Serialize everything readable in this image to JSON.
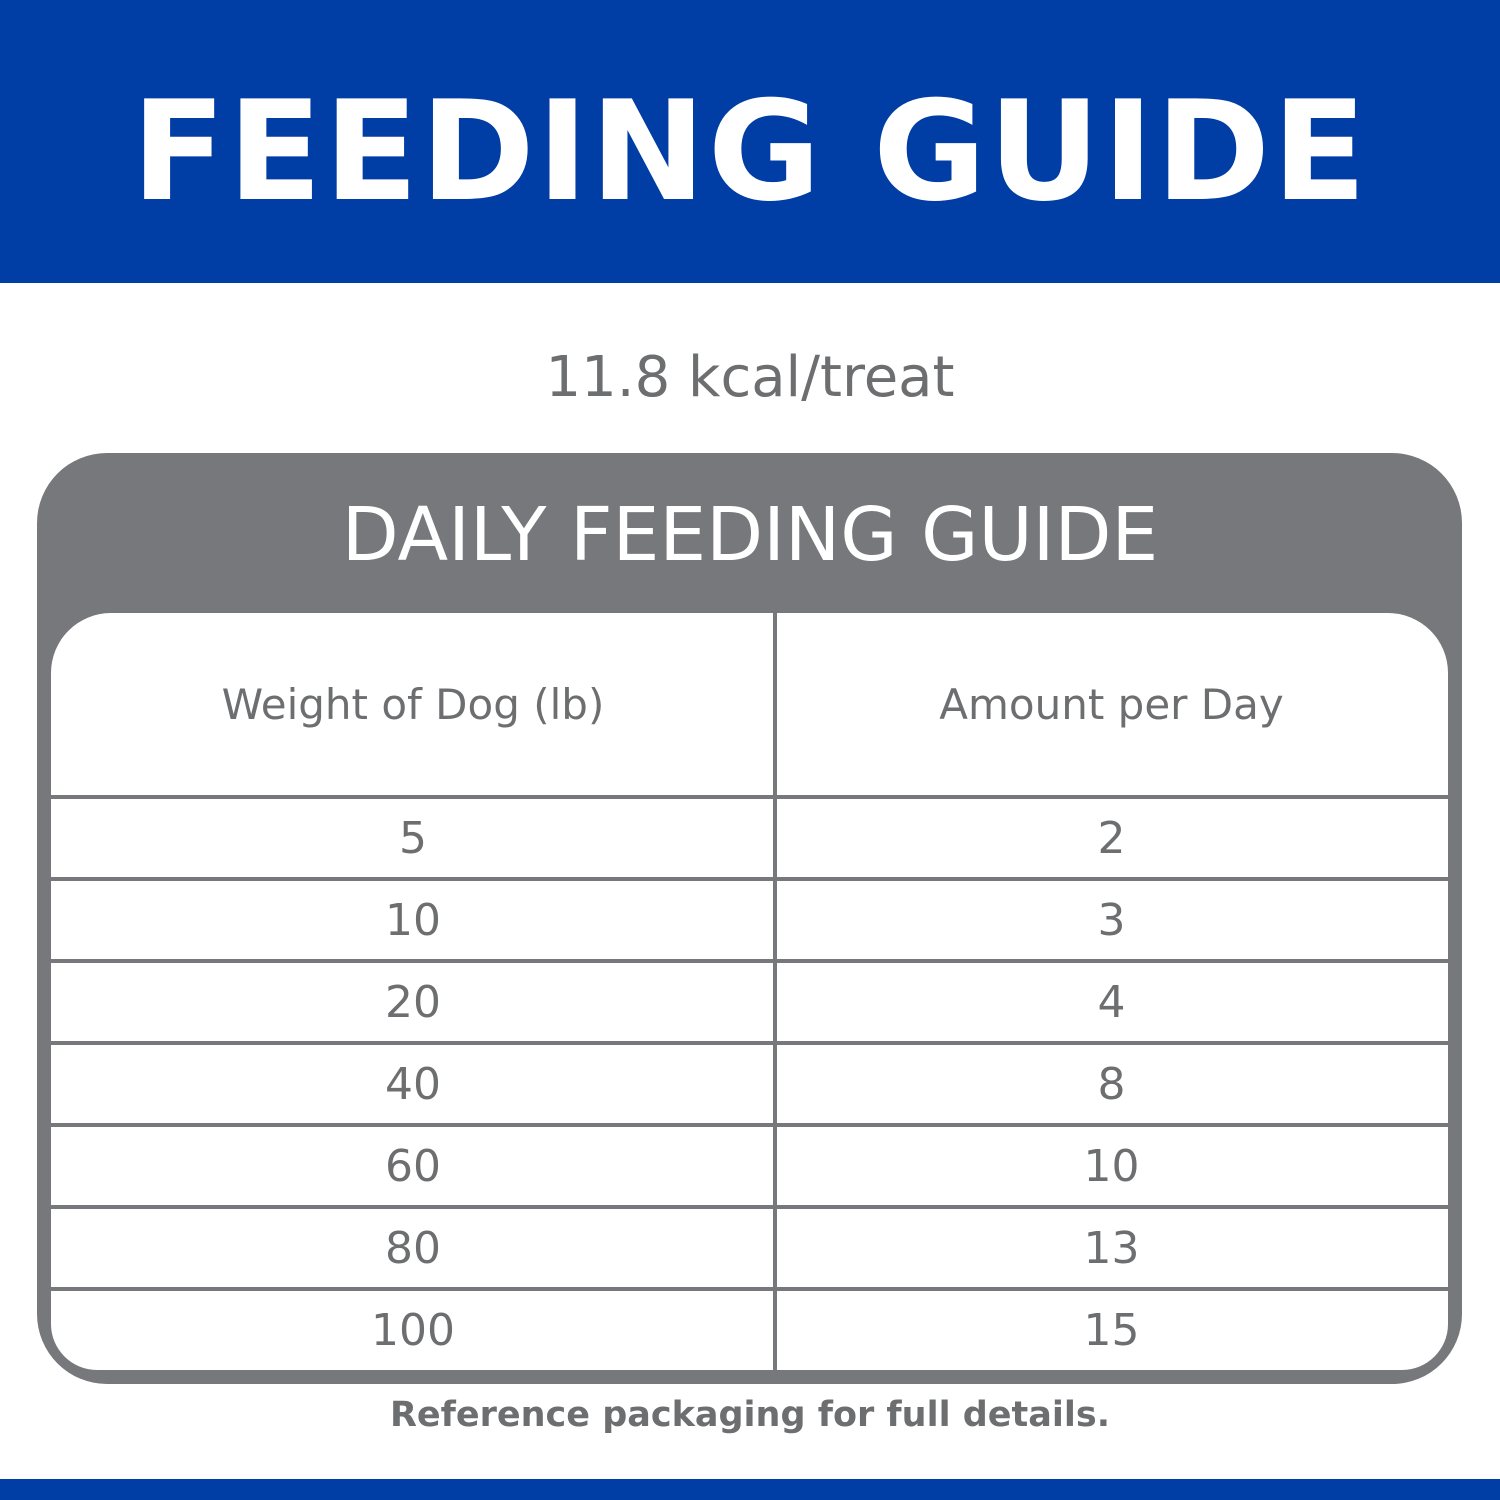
{
  "header": {
    "title": "FEEDING GUIDE"
  },
  "calories": "11.8 kcal/treat",
  "table": {
    "title": "DAILY FEEDING GUIDE",
    "columns": [
      "Weight of Dog (lb)",
      "Amount per Day"
    ],
    "rows": [
      [
        "5",
        "2"
      ],
      [
        "10",
        "3"
      ],
      [
        "20",
        "4"
      ],
      [
        "40",
        "8"
      ],
      [
        "60",
        "10"
      ],
      [
        "80",
        "13"
      ],
      [
        "100",
        "15"
      ]
    ]
  },
  "footnote": "Reference packaging for full details.",
  "colors": {
    "brand_blue": "#003da5",
    "table_gray": "#77787b",
    "text_gray": "#6d6e70"
  }
}
